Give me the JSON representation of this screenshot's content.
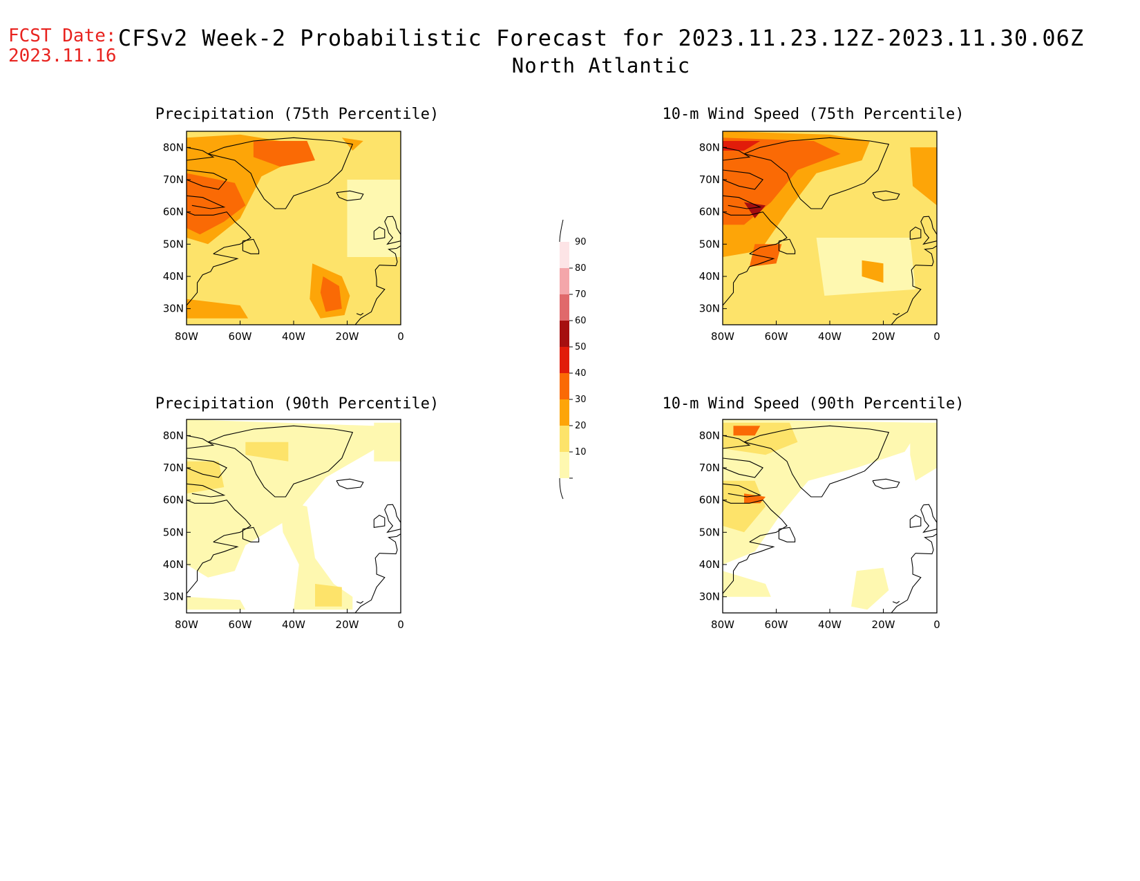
{
  "header": {
    "fcst_label": "FCST Date:",
    "fcst_date": "2023.11.16",
    "title": "CFSv2 Week-2 Probabilistic Forecast for 2023.11.23.12Z-2023.11.30.06Z",
    "subtitle": "North Atlantic"
  },
  "panels": [
    {
      "id": "precip75",
      "title": "Precipitation (75th Percentile)",
      "level": "high"
    },
    {
      "id": "wind75",
      "title": "10-m Wind Speed (75th Percentile)",
      "level": "high"
    },
    {
      "id": "precip90",
      "title": "Precipitation (90th Percentile)",
      "level": "low"
    },
    {
      "id": "wind90",
      "title": "10-m Wind Speed (90th Percentile)",
      "level": "low"
    }
  ],
  "axes": {
    "lat_labels": [
      "80N",
      "70N",
      "60N",
      "50N",
      "40N",
      "30N"
    ],
    "lon_labels": [
      "80W",
      "60W",
      "40W",
      "20W",
      "0"
    ]
  },
  "colorbar": {
    "labels": [
      "90",
      "80",
      "70",
      "60",
      "50",
      "40",
      "30",
      "20",
      "10"
    ],
    "colors": [
      "#fde4e6",
      "#f4a6aa",
      "#e0696b",
      "#a50f0f",
      "#e11c0a",
      "#fa6a05",
      "#fda508",
      "#fde36a",
      "#fef8b0"
    ]
  }
}
